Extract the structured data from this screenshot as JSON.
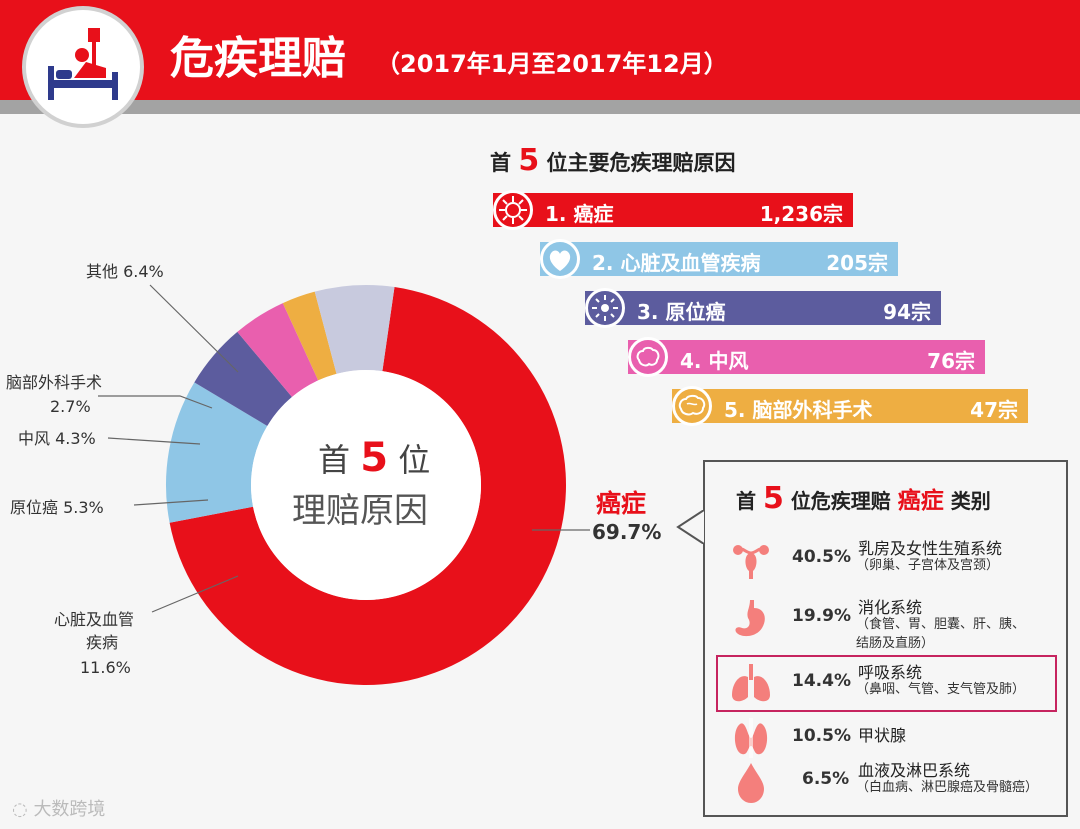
{
  "header": {
    "title": "危疾理赔",
    "period": "（2017年1月至2017年12月）",
    "icon": "hospital-bed-icon"
  },
  "colors": {
    "brand_red": "#e8101a",
    "heart_blue": "#8fc6e6",
    "in_situ_purple": "#5c5c9e",
    "stroke_pink": "#e95fae",
    "brain_orange": "#eeae42",
    "other_grey": "#c8cade"
  },
  "top5": {
    "title_pre": "首",
    "title_num": "5",
    "title_post": "位主要危疾理赔原因",
    "items": [
      {
        "label": "1. 癌症",
        "count": "1,236宗",
        "icon": "cancer-cell-icon",
        "color": "#e8101a"
      },
      {
        "label": "2. 心脏及血管疾病",
        "count": "205宗",
        "icon": "heart-icon",
        "color": "#8fc6e6"
      },
      {
        "label": "3. 原位癌",
        "count": "94宗",
        "icon": "cell-icon",
        "color": "#5c5c9e"
      },
      {
        "label": "4. 中风",
        "count": "76宗",
        "icon": "brain-stroke-icon",
        "color": "#e95fae"
      },
      {
        "label": "5. 脑部外科手术",
        "count": "47宗",
        "icon": "brain-icon",
        "color": "#eeae42"
      }
    ]
  },
  "donut": {
    "center_pre": "首",
    "center_num": "5",
    "center_post": "位",
    "center_line2": "理赔原因",
    "cancer_label": "癌症",
    "cancer_pct": "69.7%",
    "labels": {
      "other": "其他 6.4%",
      "brain_surgery_1": "脑部外科手术",
      "brain_surgery_2": "2.7%",
      "stroke": "中风 4.3%",
      "in_situ": "原位癌 5.3%",
      "heart_1": "心脏及血管",
      "heart_2": "疾病",
      "heart_3": "11.6%"
    }
  },
  "chart_data": [
    {
      "type": "pie",
      "title": "首5位理赔原因",
      "categories": [
        "癌症",
        "心脏及血管疾病",
        "原位癌",
        "中风",
        "脑部外科手术",
        "其他"
      ],
      "values": [
        69.7,
        11.6,
        5.3,
        4.3,
        2.7,
        6.4
      ],
      "unit": "%",
      "colors": [
        "#e8101a",
        "#8fc6e6",
        "#5c5c9e",
        "#e95fae",
        "#eeae42",
        "#c8cade"
      ]
    },
    {
      "type": "bar",
      "title": "首5位主要危疾理赔原因",
      "categories": [
        "癌症",
        "心脏及血管疾病",
        "原位癌",
        "中风",
        "脑部外科手术"
      ],
      "values": [
        1236,
        205,
        94,
        76,
        47
      ],
      "unit": "宗"
    },
    {
      "type": "table",
      "title": "首5位危疾理赔癌症类别",
      "categories": [
        "乳房及女性生殖系统",
        "消化系统",
        "呼吸系统",
        "甲状腺",
        "血液及淋巴系统"
      ],
      "values": [
        40.5,
        19.9,
        14.4,
        10.5,
        6.5
      ],
      "unit": "%"
    }
  ],
  "cancer_types": {
    "title_pre": "首",
    "title_num": "5",
    "title_mid": "位危疾理赔",
    "title_hl": "癌症",
    "title_post": "类别",
    "items": [
      {
        "pct": "40.5%",
        "name": "乳房及女性生殖系统",
        "desc": "（卵巢、子宫体及宫颈）",
        "icon": "uterus-icon"
      },
      {
        "pct": "19.9%",
        "name": "消化系统",
        "desc": "（食管、胃、胆囊、肝、胰、\n结肠及直肠）",
        "icon": "stomach-icon"
      },
      {
        "pct": "14.4%",
        "name": "呼吸系统",
        "desc": "（鼻咽、气管、支气管及肺）",
        "icon": "lungs-icon"
      },
      {
        "pct": "10.5%",
        "name": "甲状腺",
        "desc": "",
        "icon": "thyroid-icon"
      },
      {
        "pct": "6.5%",
        "name": "血液及淋巴系统",
        "desc": "（白血病、淋巴腺癌及骨髓癌）",
        "icon": "blood-drop-icon"
      }
    ]
  },
  "watermark": "大数跨境"
}
